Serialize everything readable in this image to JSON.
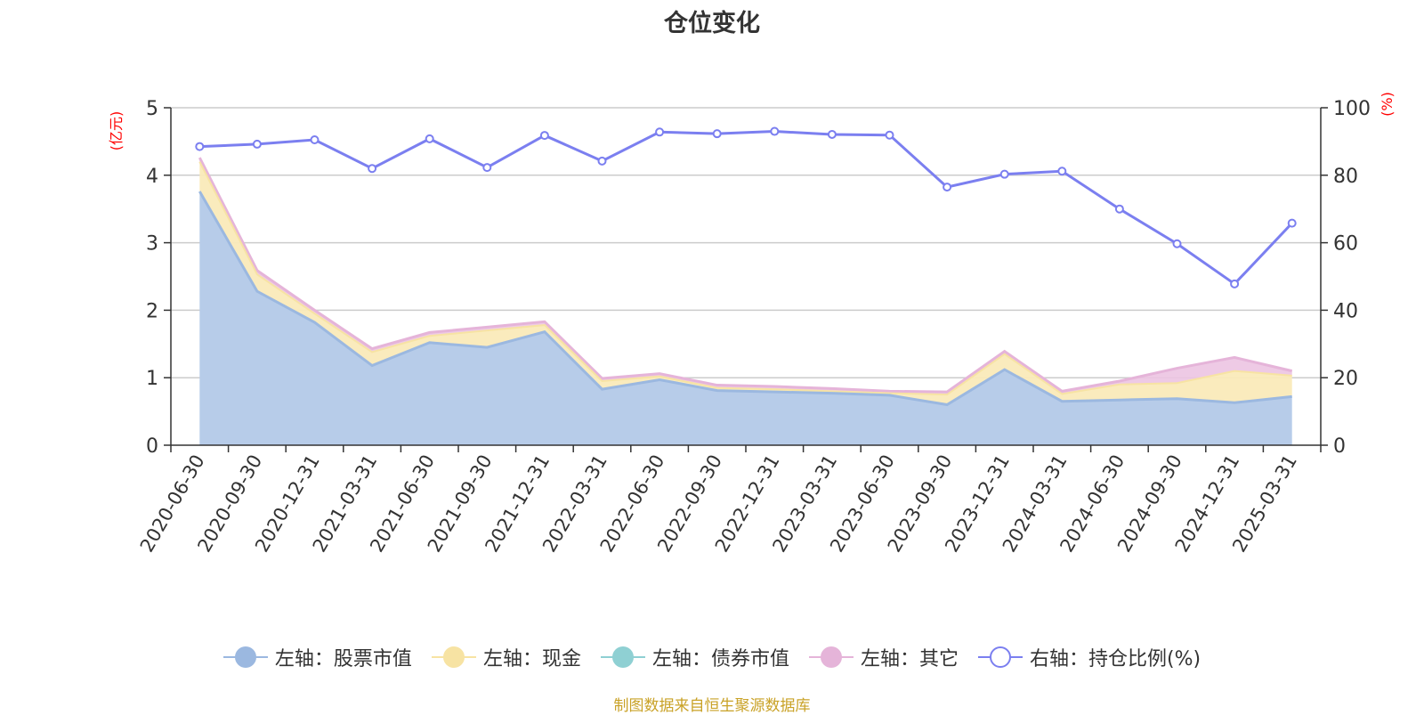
{
  "title": "仓位变化",
  "source_text": "制图数据来自恒生聚源数据库",
  "colors": {
    "stock": "#9bb8e0",
    "stock_fill": "#b7cce9",
    "cash": "#f7e3a3",
    "cash_fill": "#faeab9",
    "bond": "#8fd0d3",
    "other": "#e5b4d9",
    "other_fill": "#ecc4e2",
    "ratio": "#7b7ff0",
    "axis": "#333333",
    "grid": "#cccccc",
    "unit": "#ff0000"
  },
  "chart_data": {
    "type": "area",
    "title": "仓位变化",
    "categories": [
      "2020-06-30",
      "2020-09-30",
      "2020-12-31",
      "2021-03-31",
      "2021-06-30",
      "2021-09-30",
      "2021-12-31",
      "2022-03-31",
      "2022-06-30",
      "2022-09-30",
      "2022-12-31",
      "2023-03-31",
      "2023-06-30",
      "2023-09-30",
      "2023-12-31",
      "2024-03-31",
      "2024-06-30",
      "2024-09-30",
      "2024-12-31",
      "2025-03-31"
    ],
    "left_axis": {
      "unit_label": "(亿元)",
      "ylim": [
        0,
        5
      ],
      "ticks": [
        "0",
        "1",
        "2",
        "3",
        "4",
        "5"
      ]
    },
    "right_axis": {
      "unit_label": "(%)",
      "ylim": [
        0,
        100
      ],
      "ticks": [
        "0",
        "20",
        "40",
        "60",
        "80",
        "100"
      ]
    },
    "series": [
      {
        "name": "左轴：股票市值",
        "axis": "left",
        "type": "area-stacked",
        "values": [
          3.76,
          2.28,
          1.82,
          1.18,
          1.52,
          1.45,
          1.68,
          0.83,
          0.97,
          0.81,
          0.79,
          0.77,
          0.74,
          0.6,
          1.12,
          0.65,
          0.67,
          0.69,
          0.63,
          0.72
        ]
      },
      {
        "name": "左轴：现金",
        "axis": "left",
        "type": "area-stacked",
        "values": [
          0.44,
          0.25,
          0.13,
          0.2,
          0.1,
          0.25,
          0.1,
          0.12,
          0.05,
          0.04,
          0.04,
          0.03,
          0.03,
          0.15,
          0.23,
          0.11,
          0.23,
          0.23,
          0.47,
          0.31
        ]
      },
      {
        "name": "左轴：债券市值",
        "axis": "left",
        "type": "area-stacked",
        "values": [
          0,
          0,
          0,
          0,
          0,
          0,
          0,
          0,
          0,
          0,
          0,
          0,
          0,
          0,
          0,
          0,
          0,
          0,
          0,
          0
        ]
      },
      {
        "name": "左轴：其它",
        "axis": "left",
        "type": "area-stacked",
        "values": [
          0.06,
          0.06,
          0.05,
          0.05,
          0.05,
          0.05,
          0.05,
          0.04,
          0.04,
          0.04,
          0.04,
          0.04,
          0.03,
          0.04,
          0.04,
          0.04,
          0.05,
          0.22,
          0.2,
          0.07
        ]
      },
      {
        "name": "右轴：持仓比例(%)",
        "axis": "right",
        "type": "line",
        "values": [
          88.5,
          89.2,
          90.5,
          82.0,
          90.8,
          82.3,
          91.8,
          84.2,
          92.8,
          92.3,
          93.0,
          92.1,
          91.9,
          76.5,
          80.3,
          81.2,
          70.0,
          59.7,
          47.8,
          65.8
        ]
      }
    ]
  }
}
